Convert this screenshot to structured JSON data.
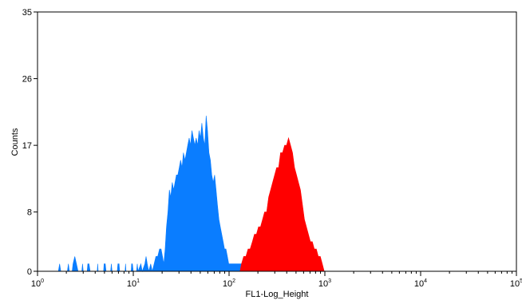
{
  "chart_data": {
    "type": "area",
    "title": "",
    "xlabel": "FL1-Log_Height",
    "ylabel": "Counts",
    "x_scale": "log",
    "xlim": [
      1,
      100000
    ],
    "ylim": [
      0,
      35
    ],
    "grid": false,
    "x_ticks": [
      {
        "value": 1,
        "base": "10",
        "exp": "0"
      },
      {
        "value": 10,
        "base": "10",
        "exp": "1"
      },
      {
        "value": 100,
        "base": "10",
        "exp": "2"
      },
      {
        "value": 1000,
        "base": "10",
        "exp": "3"
      },
      {
        "value": 10000,
        "base": "10",
        "exp": "4"
      },
      {
        "value": 100000,
        "base": "10",
        "exp": "5"
      }
    ],
    "y_ticks": [
      {
        "value": 0,
        "label": "0"
      },
      {
        "value": 8,
        "label": "8"
      },
      {
        "value": 17,
        "label": "17"
      },
      {
        "value": 26,
        "label": "26"
      },
      {
        "value": 35,
        "label": "35"
      }
    ],
    "series": [
      {
        "color": "#0A7DFF",
        "points": [
          [
            1.65,
            0
          ],
          [
            1.7,
            1
          ],
          [
            1.75,
            0
          ],
          [
            2.05,
            0
          ],
          [
            2.1,
            1
          ],
          [
            2.15,
            0
          ],
          [
            2.3,
            0
          ],
          [
            2.35,
            1
          ],
          [
            2.45,
            2
          ],
          [
            2.55,
            1
          ],
          [
            2.65,
            0
          ],
          [
            2.9,
            0
          ],
          [
            2.95,
            1
          ],
          [
            3.0,
            0
          ],
          [
            3.3,
            0
          ],
          [
            3.35,
            1
          ],
          [
            3.45,
            1
          ],
          [
            3.55,
            0
          ],
          [
            4.2,
            0
          ],
          [
            4.25,
            1
          ],
          [
            4.3,
            0
          ],
          [
            4.9,
            0
          ],
          [
            4.95,
            1
          ],
          [
            5.1,
            1
          ],
          [
            5.2,
            0
          ],
          [
            5.8,
            0
          ],
          [
            5.9,
            1
          ],
          [
            6.0,
            0
          ],
          [
            6.8,
            0
          ],
          [
            6.9,
            1
          ],
          [
            7.1,
            1
          ],
          [
            7.2,
            0
          ],
          [
            8.2,
            0
          ],
          [
            8.3,
            1
          ],
          [
            8.4,
            0
          ],
          [
            9.5,
            0
          ],
          [
            9.6,
            1
          ],
          [
            9.8,
            1
          ],
          [
            10.0,
            0
          ],
          [
            10.8,
            0
          ],
          [
            11.0,
            1
          ],
          [
            11.2,
            0
          ],
          [
            12.0,
            1
          ],
          [
            12.4,
            0
          ],
          [
            13.2,
            1
          ],
          [
            13.6,
            2
          ],
          [
            14.0,
            1
          ],
          [
            14.5,
            0
          ],
          [
            15.2,
            1
          ],
          [
            15.8,
            0
          ],
          [
            16.5,
            1
          ],
          [
            17.2,
            2
          ],
          [
            18.0,
            2
          ],
          [
            18.8,
            3
          ],
          [
            19.5,
            3
          ],
          [
            20.2,
            2
          ],
          [
            20.8,
            1
          ],
          [
            21.5,
            3
          ],
          [
            22.2,
            6
          ],
          [
            23.0,
            8
          ],
          [
            23.8,
            11
          ],
          [
            24.6,
            10
          ],
          [
            25.5,
            12
          ],
          [
            26.4,
            11
          ],
          [
            27.3,
            12
          ],
          [
            28.2,
            13
          ],
          [
            29.2,
            13
          ],
          [
            30.2,
            14
          ],
          [
            31.2,
            15
          ],
          [
            32.3,
            14
          ],
          [
            33.4,
            16
          ],
          [
            34.6,
            15
          ],
          [
            35.8,
            16
          ],
          [
            37.0,
            17
          ],
          [
            38.3,
            18
          ],
          [
            39.6,
            17
          ],
          [
            41.0,
            19
          ],
          [
            42.4,
            18
          ],
          [
            43.9,
            17
          ],
          [
            45.4,
            18
          ],
          [
            47.0,
            17
          ],
          [
            48.6,
            19
          ],
          [
            50.3,
            18
          ],
          [
            52.0,
            20
          ],
          [
            53.8,
            18
          ],
          [
            55.7,
            17
          ],
          [
            57.6,
            21
          ],
          [
            59.6,
            19
          ],
          [
            61.7,
            16
          ],
          [
            63.8,
            15
          ],
          [
            66.0,
            13
          ],
          [
            68.3,
            12
          ],
          [
            70.7,
            13
          ],
          [
            73.1,
            11
          ],
          [
            75.6,
            9
          ],
          [
            78.3,
            7
          ],
          [
            81.0,
            6
          ],
          [
            83.8,
            5
          ],
          [
            86.7,
            4
          ],
          [
            89.7,
            3
          ],
          [
            92.8,
            3
          ],
          [
            96.0,
            2
          ],
          [
            99.3,
            1
          ],
          [
            102.7,
            1
          ],
          [
            106.3,
            1
          ],
          [
            110.0,
            1
          ],
          [
            113.8,
            1
          ],
          [
            117.7,
            1
          ],
          [
            121.8,
            1
          ],
          [
            126.0,
            1
          ],
          [
            130.4,
            1
          ],
          [
            135.0,
            1
          ],
          [
            139.6,
            1
          ],
          [
            144.4,
            2
          ],
          [
            147.0,
            1
          ],
          [
            150.0,
            0
          ],
          [
            340.0,
            0
          ],
          [
            345.0,
            1
          ],
          [
            352.0,
            0
          ],
          [
            400.0,
            0
          ],
          [
            410.0,
            1
          ],
          [
            420.0,
            0
          ]
        ]
      },
      {
        "color": "#FF0000",
        "points": [
          [
            130.0,
            0
          ],
          [
            135.0,
            1
          ],
          [
            142.0,
            2
          ],
          [
            150.0,
            2
          ],
          [
            158.0,
            3
          ],
          [
            166.0,
            3
          ],
          [
            175.0,
            4
          ],
          [
            184.0,
            5
          ],
          [
            193.0,
            5
          ],
          [
            203.0,
            6
          ],
          [
            213.0,
            6
          ],
          [
            224.0,
            7
          ],
          [
            235.0,
            8
          ],
          [
            247.0,
            8
          ],
          [
            259.0,
            10
          ],
          [
            272.0,
            11
          ],
          [
            285.0,
            12
          ],
          [
            299.0,
            13
          ],
          [
            314.0,
            14
          ],
          [
            329.0,
            14
          ],
          [
            345.0,
            16
          ],
          [
            362.0,
            16
          ],
          [
            380.0,
            17
          ],
          [
            398.0,
            17
          ],
          [
            418.0,
            18
          ],
          [
            438.0,
            17
          ],
          [
            460.0,
            16
          ],
          [
            482.0,
            14
          ],
          [
            506.0,
            13
          ],
          [
            530.0,
            12
          ],
          [
            556.0,
            11
          ],
          [
            583.0,
            9
          ],
          [
            612.0,
            7
          ],
          [
            642.0,
            6
          ],
          [
            673.0,
            5
          ],
          [
            706.0,
            4
          ],
          [
            740.0,
            4
          ],
          [
            776.0,
            3
          ],
          [
            814.0,
            3
          ],
          [
            854.0,
            2
          ],
          [
            896.0,
            2
          ],
          [
            940.0,
            1
          ],
          [
            985.0,
            0
          ]
        ]
      }
    ]
  }
}
